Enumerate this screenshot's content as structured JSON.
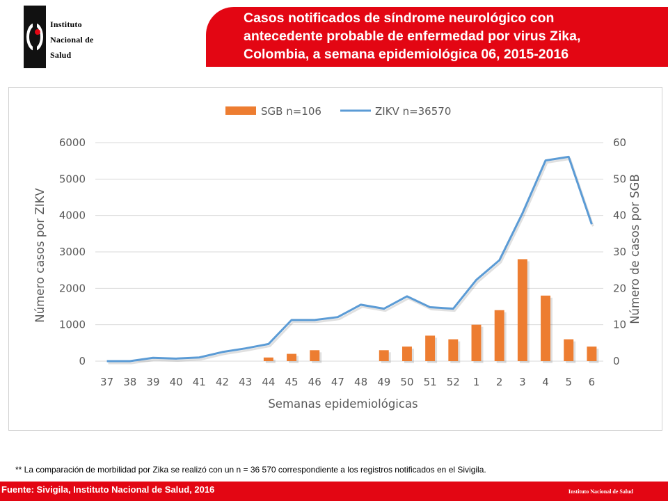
{
  "header": {
    "logo_lines": [
      "Instituto",
      "Nacional de",
      "Salud"
    ],
    "title_lines": [
      "Casos notificados de síndrome neurológico con",
      "antecedente probable de enfermedad por virus Zika,",
      "Colombia, a semana epidemiológica 06, 2015-2016"
    ]
  },
  "colors": {
    "brand_red": "#e30613",
    "bar": "#ed7d31",
    "line": "#5b9bd5",
    "grid": "#d9d9d9",
    "text": "#595959"
  },
  "chart_data": {
    "type": "bar+line",
    "categories": [
      "37",
      "38",
      "39",
      "40",
      "41",
      "42",
      "43",
      "44",
      "45",
      "46",
      "47",
      "48",
      "49",
      "50",
      "51",
      "52",
      "1",
      "2",
      "3",
      "4",
      "5",
      "6"
    ],
    "series": [
      {
        "name": "SGB n=106",
        "type": "bar",
        "axis": "right",
        "values": [
          0,
          0,
          0,
          0,
          0,
          0,
          0,
          1,
          2,
          3,
          0,
          0,
          3,
          4,
          7,
          6,
          10,
          14,
          28,
          18,
          6,
          4
        ]
      },
      {
        "name": "ZIKV n=36570",
        "type": "line",
        "axis": "left",
        "values": [
          0,
          0,
          90,
          70,
          100,
          250,
          350,
          470,
          1130,
          1130,
          1210,
          1550,
          1440,
          1780,
          1480,
          1440,
          2230,
          2770,
          4060,
          5510,
          5610,
          3760
        ]
      }
    ],
    "xlabel": "Semanas epidemiológicas",
    "ylabel": "Número casos por ZIKV",
    "y2label": "Número de casos por SGB",
    "ylim": [
      0,
      6000
    ],
    "y2lim": [
      0,
      60
    ],
    "yticks": [
      "0",
      "1000",
      "2000",
      "3000",
      "4000",
      "5000",
      "6000"
    ],
    "y2ticks": [
      "0",
      "10",
      "20",
      "30",
      "40",
      "50",
      "60"
    ],
    "grid": true,
    "legend_position": "top-center"
  },
  "footnote": "** La comparación de morbilidad por Zika se realizó con un n = 36 570 correspondiente a los registros notificados en el Sivigila.",
  "footer": {
    "source": "Fuente: Sivigila, Instituto Nacional de Salud, 2016",
    "org": "Instituto Nacional de Salud"
  }
}
